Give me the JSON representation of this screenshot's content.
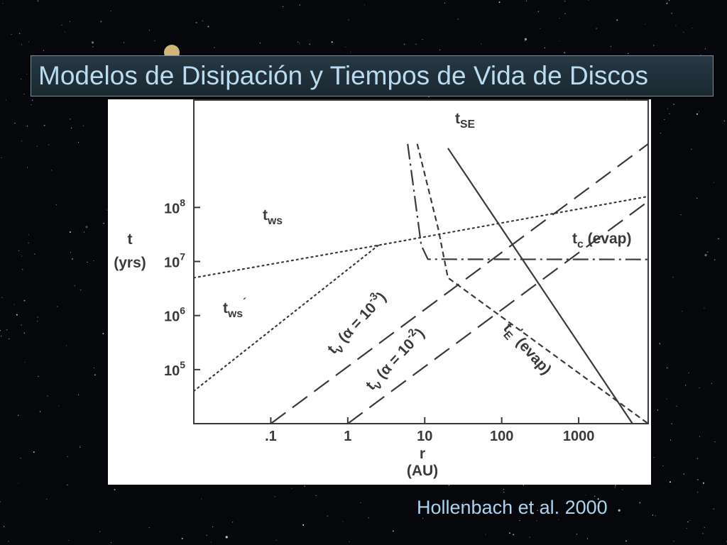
{
  "slide": {
    "title": "Modelos de Disipación y Tiempos de Vida de Discos",
    "credit": "Hollenbach et al. 2000",
    "colors": {
      "title_text": "#b9dcf0",
      "credit_text": "#a9d4ee",
      "plot_ink": "#3a3a3a"
    }
  },
  "chart_data": {
    "type": "line",
    "xscale": "log",
    "yscale": "log",
    "xlabel": "r",
    "xunit": "(AU)",
    "ylabel": "t",
    "yunit": "(yrs)",
    "xlim": [
      0.01,
      8000
    ],
    "ylim": [
      10000,
      10000000000
    ],
    "x_ticks": [
      {
        "value": 0.1,
        "label": ".1"
      },
      {
        "value": 1,
        "label": "1"
      },
      {
        "value": 10,
        "label": "10"
      },
      {
        "value": 100,
        "label": "100"
      },
      {
        "value": 1000,
        "label": "1000"
      }
    ],
    "y_ticks": [
      {
        "value": 100000,
        "base": "10",
        "exp": "5"
      },
      {
        "value": 1000000,
        "base": "10",
        "exp": "6"
      },
      {
        "value": 10000000,
        "base": "10",
        "exp": "7"
      },
      {
        "value": 100000000,
        "base": "10",
        "exp": "8"
      }
    ],
    "grid": false,
    "series": [
      {
        "key": "tws",
        "style": "dotted",
        "label_main": "t",
        "label_sub": "ws",
        "label_prime": "",
        "points": [
          [
            0.01,
            5000000
          ],
          [
            2.5,
            20000000
          ],
          [
            8000,
            160000000
          ]
        ]
      },
      {
        "key": "tws_prime",
        "style": "dotted",
        "label_main": "t",
        "label_sub": "ws",
        "label_prime": "´",
        "points": [
          [
            0.01,
            40000
          ],
          [
            2.5,
            20000000
          ]
        ]
      },
      {
        "key": "tse",
        "style": "solid",
        "label_main": "t",
        "label_sub": "SE",
        "label_prime": "",
        "points": [
          [
            20,
            1250000000
          ],
          [
            5000,
            10000
          ]
        ]
      },
      {
        "key": "tc",
        "style": "dashdot",
        "label_main": "t",
        "label_sub": "c",
        "label_prime": "",
        "label_suffix": "(evap)",
        "points": [
          [
            6,
            1500000000
          ],
          [
            9,
            20000000
          ],
          [
            11,
            11000000
          ],
          [
            8000,
            10900000
          ]
        ]
      },
      {
        "key": "te",
        "style": "shortdash",
        "label_main": "t",
        "label_sub": "E",
        "label_prime": "'",
        "label_suffix": "(evap)",
        "points": [
          [
            8,
            1500000000
          ],
          [
            15,
            40000000
          ],
          [
            20,
            5000000
          ],
          [
            8000,
            10000
          ]
        ]
      },
      {
        "key": "tnu_a3",
        "style": "longdash",
        "label_main": "t",
        "label_sub": "ν",
        "label_alpha": "α",
        "label_eq": "= 10",
        "label_exp": "-3",
        "points": [
          [
            0.1,
            10000
          ],
          [
            8000,
            1500000000
          ]
        ]
      },
      {
        "key": "tnu_a2",
        "style": "longdash",
        "label_main": "t",
        "label_sub": "ν",
        "label_alpha": "α",
        "label_eq": "= 10",
        "label_exp": "-2",
        "points": [
          [
            1,
            10000
          ],
          [
            8000,
            130000000
          ]
        ]
      }
    ]
  }
}
